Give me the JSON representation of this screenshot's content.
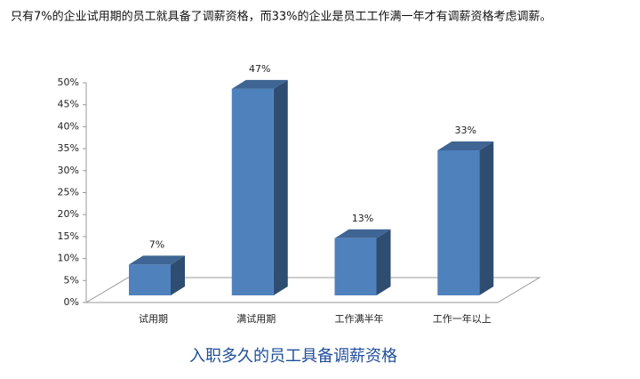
{
  "chart_data": {
    "type": "bar3d",
    "title": "只有7%的企业试用期的员工就具备了调薪资格，而33%的企业是员工工作满一年才有调薪资格考虑调薪。",
    "caption": "入职多久的员工具备调薪资格",
    "categories": [
      "试用期",
      "满试用期",
      "工作满半年",
      "工作一年以上"
    ],
    "values": [
      7,
      47,
      13,
      33
    ],
    "value_labels": [
      "7%",
      "47%",
      "13%",
      "33%"
    ],
    "color": "#4f81bd",
    "ylim": [
      0,
      50
    ],
    "yticks": [
      {
        "value": 0,
        "label": "0%"
      },
      {
        "value": 5,
        "label": "5%"
      },
      {
        "value": 10,
        "label": "10%"
      },
      {
        "value": 15,
        "label": "15%"
      },
      {
        "value": 20,
        "label": "20%"
      },
      {
        "value": 25,
        "label": "25%"
      },
      {
        "value": 30,
        "label": "30%"
      },
      {
        "value": 35,
        "label": "35%"
      },
      {
        "value": 40,
        "label": "40%"
      },
      {
        "value": 45,
        "label": "45%"
      },
      {
        "value": 50,
        "label": "50%"
      }
    ],
    "grid": false
  }
}
